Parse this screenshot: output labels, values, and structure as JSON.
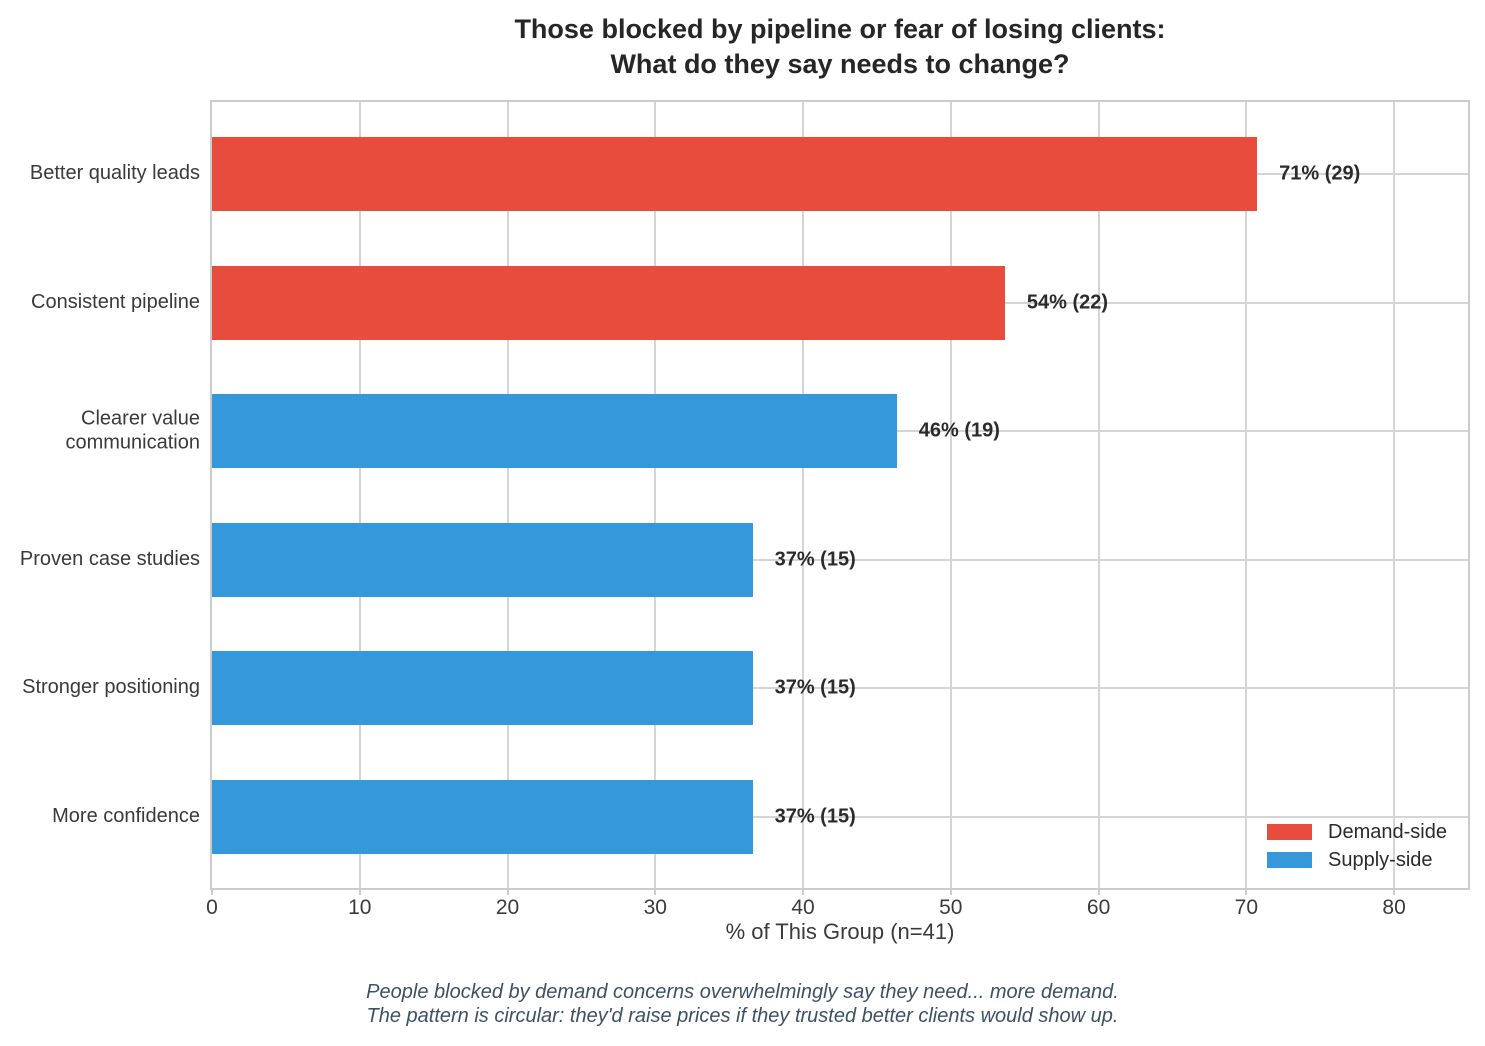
{
  "title": {
    "line1": "Those blocked by pipeline or fear of losing clients:",
    "line2": "What do they say needs to change?"
  },
  "chart_data": {
    "type": "bar",
    "orientation": "horizontal",
    "title": "Those blocked by pipeline or fear of losing clients:\nWhat do they say needs to change?",
    "categories": [
      "Better quality leads",
      "Consistent pipeline",
      "Clearer value communication",
      "Proven case studies",
      "Stronger positioning",
      "More confidence"
    ],
    "values": [
      71,
      54,
      46,
      37,
      37,
      37
    ],
    "counts": [
      29,
      22,
      19,
      15,
      15,
      15
    ],
    "n": 41,
    "bar_labels": [
      "71% (29)",
      "54% (22)",
      "46% (19)",
      "37% (15)",
      "37% (15)",
      "37% (15)"
    ],
    "bar_series": [
      "Demand-side",
      "Demand-side",
      "Supply-side",
      "Supply-side",
      "Supply-side",
      "Supply-side"
    ],
    "xlabel": "% of This Group (n=41)",
    "ylabel": "",
    "xlim": [
      0,
      85
    ],
    "xticks": [
      0,
      10,
      20,
      30,
      40,
      50,
      60,
      70,
      80
    ],
    "grid": true,
    "legend": {
      "position": "lower right",
      "entries": [
        {
          "label": "Demand-side",
          "color": "#e74c3c"
        },
        {
          "label": "Supply-side",
          "color": "#3498db"
        }
      ]
    }
  },
  "colors": {
    "demand_side": "#e74c3c",
    "supply_side": "#3498db",
    "grid": "#d5d5d5",
    "title_text": "#262626",
    "caption_text": "#3d5166"
  },
  "caption": {
    "line1": "People blocked by demand concerns overwhelmingly say they need... more demand.",
    "line2": "The pattern is circular: they'd raise prices if they trusted better clients would show up."
  }
}
